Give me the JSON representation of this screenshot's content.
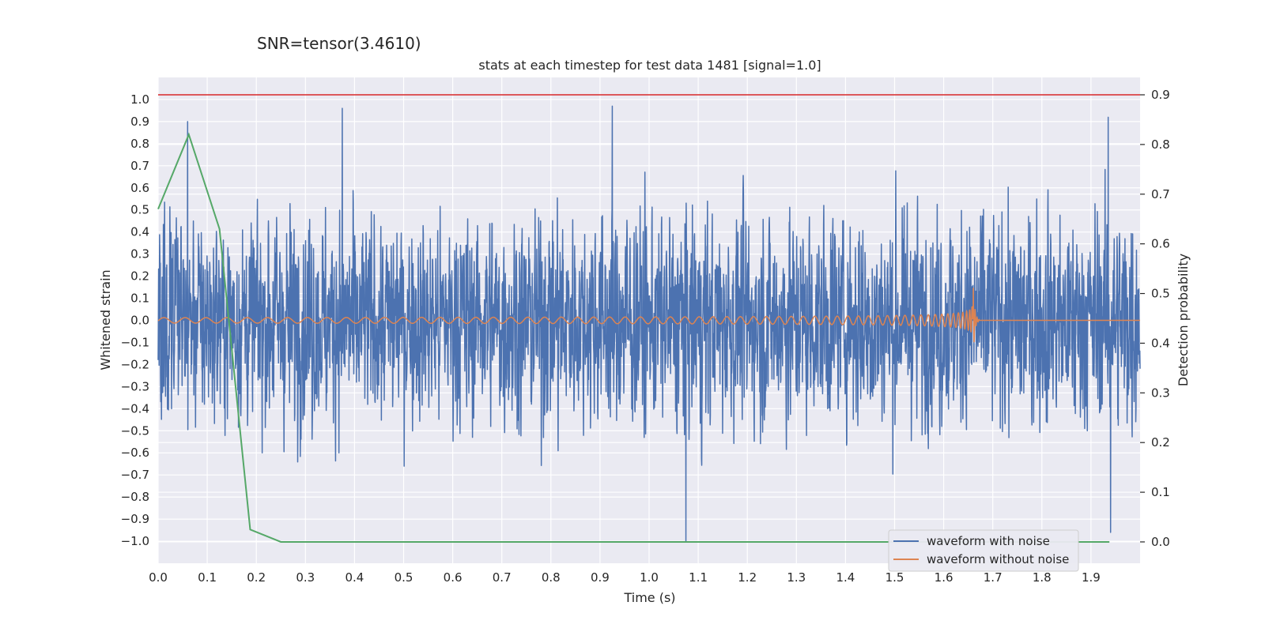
{
  "chart_data": {
    "type": "line",
    "suptitle": "SNR=tensor(3.4610)",
    "title": "stats at each timestep for test data 1481 [signal=1.0]",
    "xlabel": "Time (s)",
    "ylabel": "Whitened strain",
    "y2label": "Detection probability",
    "xlim": [
      0.0,
      2.0
    ],
    "ylim": [
      -1.1,
      1.1
    ],
    "y2lim": [
      -0.043,
      0.935
    ],
    "grid": true,
    "legend_position": "lower right",
    "x_ticks": [
      "0.0",
      "0.1",
      "0.2",
      "0.3",
      "0.4",
      "0.5",
      "0.6",
      "0.7",
      "0.8",
      "0.9",
      "1.0",
      "1.1",
      "1.2",
      "1.3",
      "1.4",
      "1.5",
      "1.6",
      "1.7",
      "1.8",
      "1.9"
    ],
    "y_ticks": [
      "1.0",
      "0.9",
      "0.8",
      "0.7",
      "0.6",
      "0.5",
      "0.4",
      "0.3",
      "0.2",
      "0.1",
      "0.0",
      "−0.1",
      "−0.2",
      "−0.3",
      "−0.4",
      "−0.5",
      "−0.6",
      "−0.7",
      "−0.8",
      "−0.9",
      "−1.0"
    ],
    "y2_ticks": [
      "0.9",
      "0.8",
      "0.7",
      "0.6",
      "0.5",
      "0.4",
      "0.3",
      "0.2",
      "0.1",
      "0.0"
    ],
    "threshold": {
      "value": 0.9,
      "axis": "right",
      "color": "#d62728"
    },
    "series": [
      {
        "name": "waveform with noise",
        "color": "#4c72b0",
        "axis": "left",
        "peaks_x": [
          0.06,
          0.375,
          0.925,
          1.075,
          1.935,
          1.94
        ],
        "peaks_y": [
          0.9,
          0.96,
          0.97,
          -1.0,
          0.92,
          -0.96
        ]
      },
      {
        "name": "waveform without noise",
        "color": "#dd8452",
        "axis": "left",
        "merger_x": 1.66,
        "merger_amplitude": 0.19
      },
      {
        "color": "#55a868",
        "axis": "right",
        "x": [
          0.0,
          0.0625,
          0.125,
          0.1875,
          0.25,
          0.3125,
          1.9375
        ],
        "y": [
          0.67,
          0.82,
          0.63,
          0.025,
          0.0,
          0.0,
          0.0
        ]
      }
    ]
  }
}
